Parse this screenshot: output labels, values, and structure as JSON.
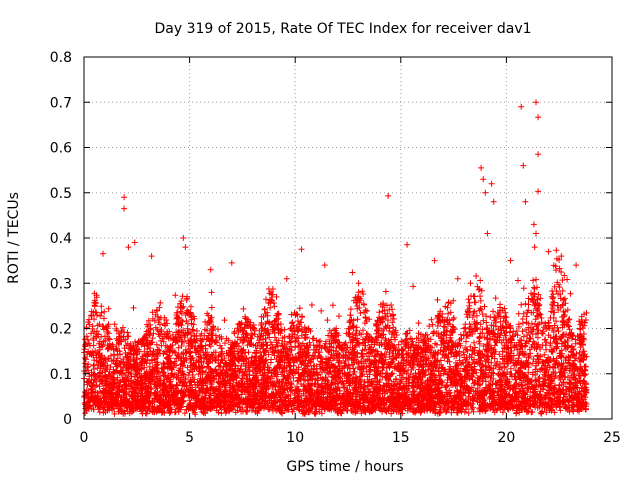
{
  "chart_data": {
    "type": "scatter",
    "title": "Day 319 of 2015, Rate Of TEC Index for receiver dav1",
    "xlabel": "GPS time / hours",
    "ylabel": "ROTI / TECUs",
    "xlim": [
      0,
      25
    ],
    "ylim": [
      0,
      0.8
    ],
    "x_ticks": [
      0,
      5,
      10,
      15,
      20,
      25
    ],
    "y_ticks": [
      0,
      0.1,
      0.2,
      0.3,
      0.4,
      0.5,
      0.6,
      0.7,
      0.8
    ],
    "x_tick_labels": [
      "0",
      "5",
      "10",
      "15",
      "20",
      "25"
    ],
    "y_tick_labels": [
      "0",
      "0.1",
      "0.2",
      "0.3",
      "0.4",
      "0.5",
      "0.6",
      "0.7",
      "0.8"
    ],
    "grid": true,
    "marker": "+",
    "marker_color": "#ff0000",
    "series": [
      {
        "name": "dav1",
        "x_range_hours": [
          0,
          23.8
        ],
        "typical_range": [
          0.0,
          0.3
        ],
        "points": [
          [
            1.9,
            0.49
          ],
          [
            1.9,
            0.465
          ],
          [
            10.3,
            0.375
          ],
          [
            14.4,
            0.493
          ],
          [
            18.8,
            0.555
          ],
          [
            18.9,
            0.53
          ],
          [
            19.0,
            0.5
          ],
          [
            19.3,
            0.52
          ],
          [
            19.4,
            0.48
          ],
          [
            20.7,
            0.69
          ],
          [
            20.8,
            0.56
          ],
          [
            20.9,
            0.48
          ],
          [
            21.4,
            0.7
          ],
          [
            21.5,
            0.667
          ],
          [
            21.5,
            0.585
          ],
          [
            21.5,
            0.503
          ],
          [
            2.4,
            0.39
          ],
          [
            4.7,
            0.4
          ],
          [
            4.8,
            0.38
          ],
          [
            15.3,
            0.385
          ],
          [
            19.1,
            0.41
          ],
          [
            21.3,
            0.43
          ],
          [
            21.4,
            0.41
          ],
          [
            0.9,
            0.365
          ],
          [
            2.1,
            0.38
          ],
          [
            3.2,
            0.36
          ],
          [
            6.0,
            0.33
          ],
          [
            7.0,
            0.345
          ],
          [
            9.6,
            0.31
          ],
          [
            11.4,
            0.34
          ],
          [
            13.0,
            0.3
          ],
          [
            16.6,
            0.35
          ],
          [
            17.7,
            0.31
          ],
          [
            18.3,
            0.3
          ],
          [
            20.2,
            0.35
          ],
          [
            22.0,
            0.37
          ],
          [
            22.6,
            0.36
          ],
          [
            23.3,
            0.34
          ]
        ]
      }
    ]
  }
}
